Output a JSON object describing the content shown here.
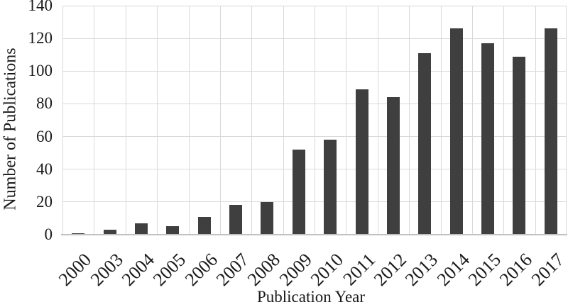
{
  "chart_data": {
    "type": "bar",
    "title": "",
    "xlabel": "Publication Year",
    "ylabel": "Number of Publications",
    "categories": [
      "2000",
      "2003",
      "2004",
      "2005",
      "2006",
      "2007",
      "2008",
      "2009",
      "2010",
      "2011",
      "2012",
      "2013",
      "2014",
      "2015",
      "2016",
      "2017"
    ],
    "values": [
      1,
      3,
      7,
      5,
      11,
      18,
      20,
      52,
      58,
      89,
      84,
      111,
      126,
      117,
      109,
      126
    ],
    "ylim": [
      0,
      140
    ],
    "yticks": [
      0,
      20,
      40,
      60,
      80,
      100,
      120,
      140
    ],
    "grid": "horizontal-and-vertical",
    "legend_position": "none",
    "colors": {
      "bar": "#3f3f3f",
      "gridline": "#d9d9d9",
      "axis_line": "#c2c2c2",
      "text": "#1a1a1a",
      "background": "#ffffff"
    }
  }
}
